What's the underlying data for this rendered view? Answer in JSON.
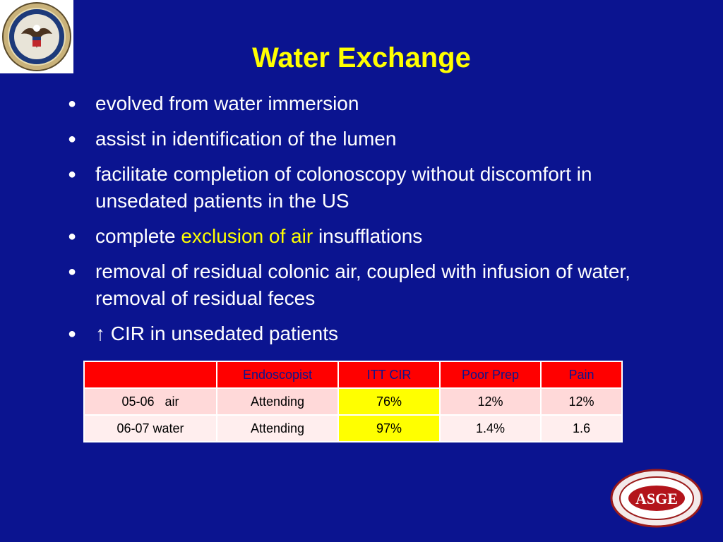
{
  "title": "Water Exchange",
  "logos": {
    "top_left": "Department of Veterans Affairs seal",
    "bottom_right_text": "ASGE",
    "bottom_right_ring_text": "AMERICAN SOCIETY FOR GASTROINTESTINAL ENDOSCOPY"
  },
  "bullets": [
    {
      "text": "evolved from water immersion"
    },
    {
      "text": "assist in identification of the lumen"
    },
    {
      "text": "facilitate completion of colonoscopy without discomfort in unsedated patients in the US"
    },
    {
      "pre": "complete ",
      "highlight": "exclusion of air",
      "post": " insufflations"
    },
    {
      "text": "removal of residual colonic air, coupled with infusion of water, removal of residual feces"
    },
    {
      "arrow": "↑",
      "text": " CIR in unsedated patients"
    }
  ],
  "bullet_glyph": "●",
  "table": {
    "headers": [
      "",
      "Endoscopist",
      "ITT CIR",
      "Poor Prep",
      "Pain"
    ],
    "rows": [
      [
        "05-06   air",
        "Attending",
        "76%",
        "12%",
        "12%"
      ],
      [
        "06-07 water",
        "Attending",
        "97%",
        "1.4%",
        "1.6"
      ]
    ]
  },
  "colors": {
    "background": "#0b1490",
    "title": "#ffff00",
    "highlight": "#ffff00",
    "table_header": "#ff0000",
    "table_row_1": "#ffd9d9",
    "table_row_2": "#ffeeee",
    "table_highlight_col": "#ffff00"
  }
}
